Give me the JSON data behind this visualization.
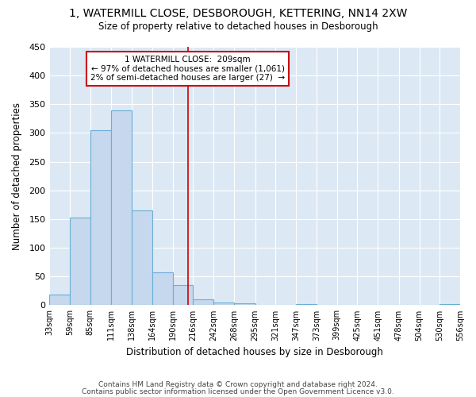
{
  "title_line1": "1, WATERMILL CLOSE, DESBOROUGH, KETTERING, NN14 2XW",
  "title_line2": "Size of property relative to detached houses in Desborough",
  "xlabel": "Distribution of detached houses by size in Desborough",
  "ylabel": "Number of detached properties",
  "footer1": "Contains HM Land Registry data © Crown copyright and database right 2024.",
  "footer2": "Contains public sector information licensed under the Open Government Licence v3.0.",
  "bar_color": "#c5d8ee",
  "bar_edge_color": "#6baed6",
  "background_color": "#dce9f5",
  "annotation_line1": "1 WATERMILL CLOSE:  209sqm",
  "annotation_line2": "← 97% of detached houses are smaller (1,061)",
  "annotation_line3": "2% of semi-detached houses are larger (27)  →",
  "annotation_box_color": "#ffffff",
  "annotation_box_edge": "#cc0000",
  "vline_x": 209,
  "vline_color": "#cc0000",
  "bin_edges": [
    33,
    59,
    85,
    111,
    138,
    164,
    190,
    216,
    242,
    268,
    295,
    321,
    347,
    373,
    399,
    425,
    451,
    478,
    504,
    530,
    556
  ],
  "bar_heights": [
    18,
    153,
    305,
    340,
    165,
    57,
    35,
    10,
    5,
    3,
    1,
    0,
    2,
    0,
    1,
    0,
    0,
    0,
    0,
    2
  ],
  "tick_labels": [
    "33sqm",
    "59sqm",
    "85sqm",
    "111sqm",
    "138sqm",
    "164sqm",
    "190sqm",
    "216sqm",
    "242sqm",
    "268sqm",
    "295sqm",
    "321sqm",
    "347sqm",
    "373sqm",
    "399sqm",
    "425sqm",
    "451sqm",
    "478sqm",
    "504sqm",
    "530sqm",
    "556sqm"
  ],
  "ylim": [
    0,
    450
  ],
  "yticks": [
    0,
    50,
    100,
    150,
    200,
    250,
    300,
    350,
    400,
    450
  ]
}
